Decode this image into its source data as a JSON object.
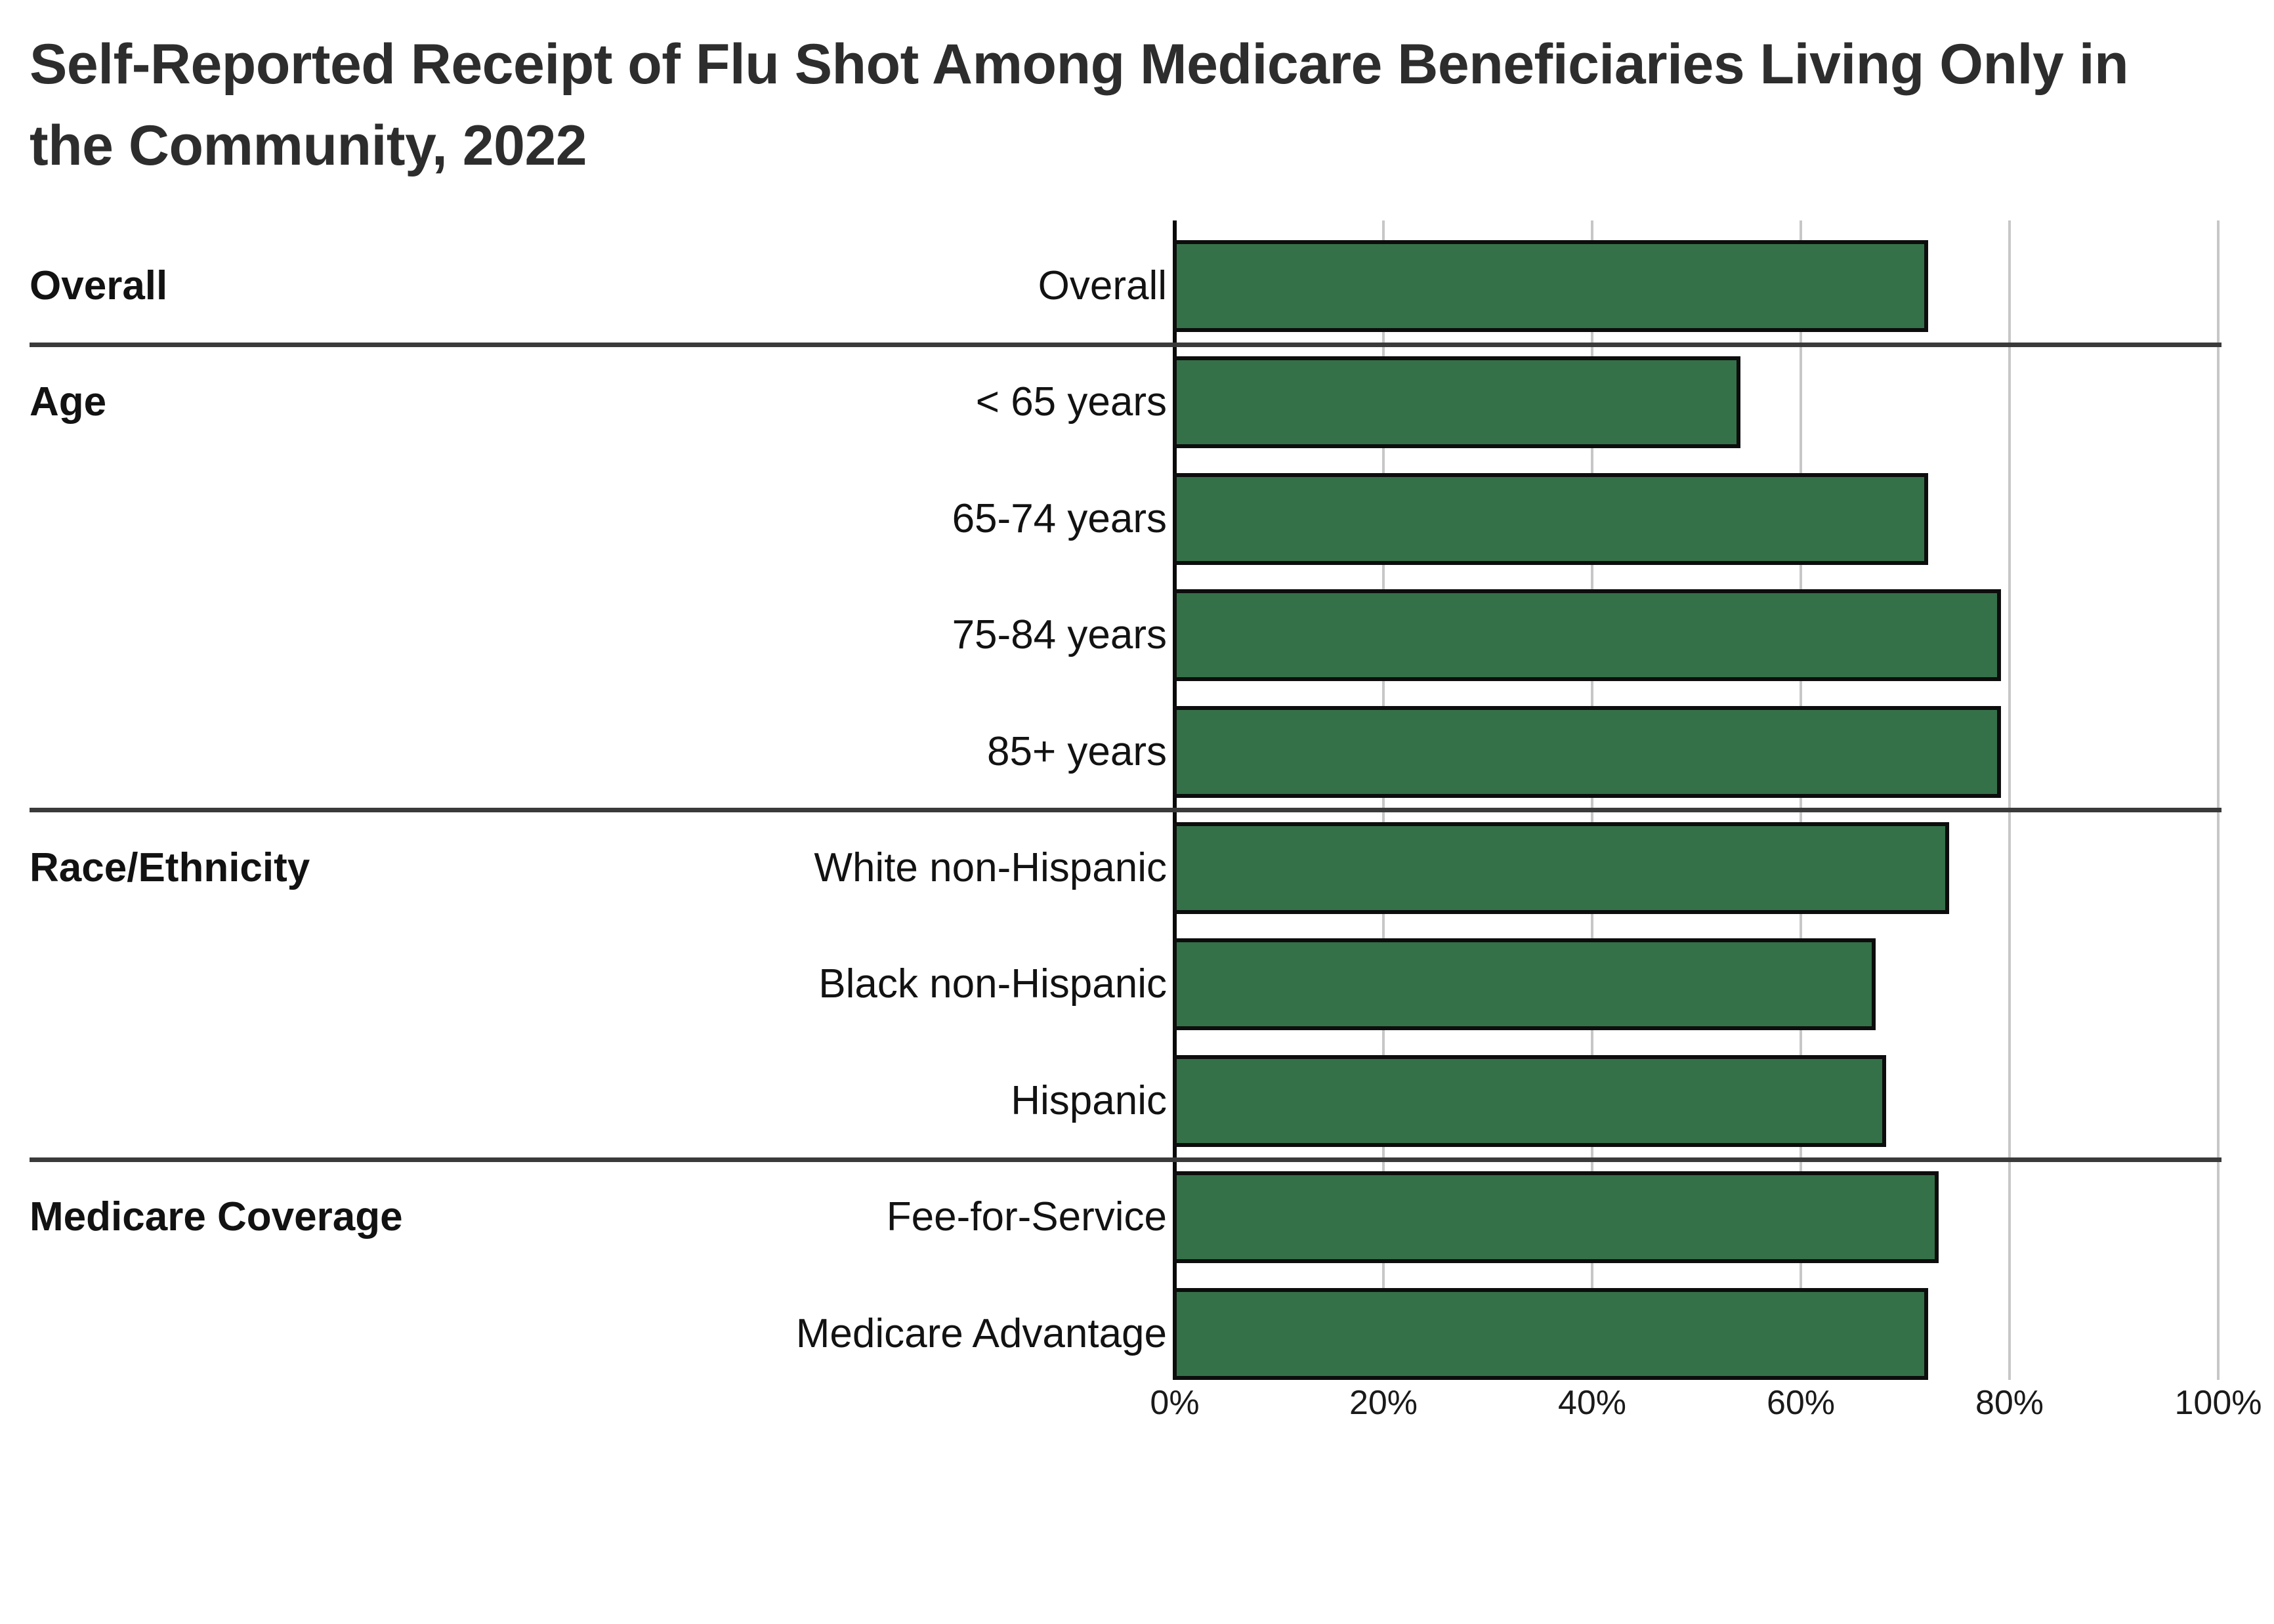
{
  "title": "Self-Reported Receipt of Flu Shot Among Medicare Beneficiaries Living Only in the Community, 2022",
  "chart_data": {
    "type": "bar",
    "orientation": "horizontal",
    "title": "Self-Reported Receipt of Flu Shot Among Medicare Beneficiaries Living Only in the Community, 2022",
    "xlabel": "",
    "ylabel": "",
    "unit": "percent",
    "x_axis": {
      "min": 0,
      "max": 100,
      "tick_interval": 20,
      "ticks": [
        "0%",
        "20%",
        "40%",
        "60%",
        "80%",
        "100%"
      ],
      "grid": true
    },
    "bar_color": "#347149",
    "bar_border_color": "#0d0d0d",
    "separator_color": "#3a3a3a",
    "groups": [
      {
        "label": "Overall",
        "rows": [
          {
            "label": "Overall",
            "value": 72
          }
        ]
      },
      {
        "label": "Age",
        "rows": [
          {
            "label": "< 65 years",
            "value": 54
          },
          {
            "label": "65-74 years",
            "value": 72
          },
          {
            "label": "75-84 years",
            "value": 79
          },
          {
            "label": "85+ years",
            "value": 79
          }
        ]
      },
      {
        "label": "Race/Ethnicity",
        "rows": [
          {
            "label": "White non-Hispanic",
            "value": 74
          },
          {
            "label": "Black non-Hispanic",
            "value": 67
          },
          {
            "label": "Hispanic",
            "value": 68
          }
        ]
      },
      {
        "label": "Medicare Coverage",
        "rows": [
          {
            "label": "Fee-for-Service",
            "value": 73
          },
          {
            "label": "Medicare Advantage",
            "value": 72
          }
        ]
      }
    ]
  }
}
